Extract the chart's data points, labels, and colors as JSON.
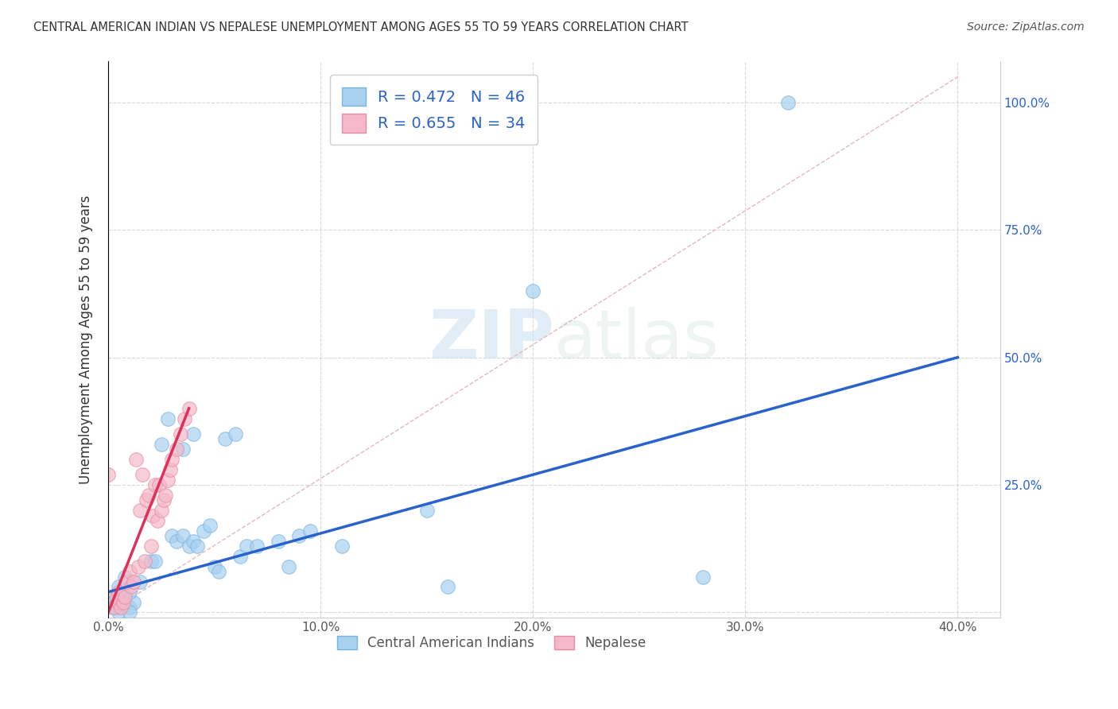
{
  "title": "CENTRAL AMERICAN INDIAN VS NEPALESE UNEMPLOYMENT AMONG AGES 55 TO 59 YEARS CORRELATION CHART",
  "source": "Source: ZipAtlas.com",
  "ylabel": "Unemployment Among Ages 55 to 59 years",
  "xlim": [
    0.0,
    0.42
  ],
  "ylim": [
    -0.01,
    1.08
  ],
  "watermark_zip": "ZIP",
  "watermark_atlas": "atlas",
  "legend_entries": [
    {
      "label": "R = 0.472   N = 46",
      "color": "#a8d1f0"
    },
    {
      "label": "R = 0.655   N = 34",
      "color": "#f4a7b9"
    }
  ],
  "legend_label_blue": "Central American Indians",
  "legend_label_pink": "Nepalese",
  "grid_color": "#cccccc",
  "blue_color": "#a8d1f0",
  "blue_edge_color": "#7ab3e0",
  "pink_color": "#f4b8c8",
  "pink_edge_color": "#e88aa0",
  "blue_line_color": "#2962cc",
  "pink_line_color": "#e0305a",
  "diag_line_color": "#e0b0b8",
  "right_tick_color": "#2962cc",
  "blue_scatter": [
    [
      0.005,
      0.02
    ],
    [
      0.008,
      0.03
    ],
    [
      0.005,
      0.01
    ],
    [
      0.01,
      0.01
    ],
    [
      0.012,
      0.02
    ],
    [
      0.005,
      0.05
    ],
    [
      0.01,
      0.04
    ],
    [
      0.008,
      0.07
    ],
    [
      0.015,
      0.06
    ],
    [
      0.005,
      0.0
    ],
    [
      0.01,
      0.0
    ],
    [
      0.002,
      0.02
    ],
    [
      0.002,
      0.03
    ],
    [
      0.005,
      0.02
    ],
    [
      0.002,
      0.01
    ],
    [
      0.02,
      0.1
    ],
    [
      0.022,
      0.1
    ],
    [
      0.025,
      0.33
    ],
    [
      0.028,
      0.38
    ],
    [
      0.03,
      0.15
    ],
    [
      0.032,
      0.14
    ],
    [
      0.035,
      0.32
    ],
    [
      0.035,
      0.15
    ],
    [
      0.038,
      0.13
    ],
    [
      0.04,
      0.35
    ],
    [
      0.04,
      0.14
    ],
    [
      0.042,
      0.13
    ],
    [
      0.045,
      0.16
    ],
    [
      0.048,
      0.17
    ],
    [
      0.05,
      0.09
    ],
    [
      0.052,
      0.08
    ],
    [
      0.055,
      0.34
    ],
    [
      0.06,
      0.35
    ],
    [
      0.062,
      0.11
    ],
    [
      0.065,
      0.13
    ],
    [
      0.07,
      0.13
    ],
    [
      0.08,
      0.14
    ],
    [
      0.085,
      0.09
    ],
    [
      0.09,
      0.15
    ],
    [
      0.095,
      0.16
    ],
    [
      0.11,
      0.13
    ],
    [
      0.15,
      0.2
    ],
    [
      0.16,
      0.05
    ],
    [
      0.2,
      0.63
    ],
    [
      0.28,
      0.07
    ],
    [
      0.32,
      1.0
    ]
  ],
  "pink_scatter": [
    [
      0.0,
      0.27
    ],
    [
      0.003,
      0.01
    ],
    [
      0.004,
      0.03
    ],
    [
      0.005,
      0.02
    ],
    [
      0.005,
      0.04
    ],
    [
      0.006,
      0.01
    ],
    [
      0.007,
      0.02
    ],
    [
      0.008,
      0.03
    ],
    [
      0.009,
      0.06
    ],
    [
      0.01,
      0.08
    ],
    [
      0.011,
      0.05
    ],
    [
      0.012,
      0.06
    ],
    [
      0.013,
      0.3
    ],
    [
      0.014,
      0.09
    ],
    [
      0.015,
      0.2
    ],
    [
      0.016,
      0.27
    ],
    [
      0.017,
      0.1
    ],
    [
      0.018,
      0.22
    ],
    [
      0.019,
      0.23
    ],
    [
      0.02,
      0.13
    ],
    [
      0.021,
      0.19
    ],
    [
      0.022,
      0.25
    ],
    [
      0.023,
      0.18
    ],
    [
      0.024,
      0.25
    ],
    [
      0.025,
      0.2
    ],
    [
      0.026,
      0.22
    ],
    [
      0.027,
      0.23
    ],
    [
      0.028,
      0.26
    ],
    [
      0.029,
      0.28
    ],
    [
      0.03,
      0.3
    ],
    [
      0.032,
      0.32
    ],
    [
      0.034,
      0.35
    ],
    [
      0.036,
      0.38
    ],
    [
      0.038,
      0.4
    ]
  ],
  "blue_line_x": [
    0.0,
    0.4
  ],
  "blue_line_y": [
    0.04,
    0.5
  ],
  "pink_line_x": [
    0.0,
    0.038
  ],
  "pink_line_y": [
    0.0,
    0.4
  ],
  "diag_line_x": [
    0.0,
    0.4
  ],
  "diag_line_y": [
    0.0,
    1.05
  ]
}
